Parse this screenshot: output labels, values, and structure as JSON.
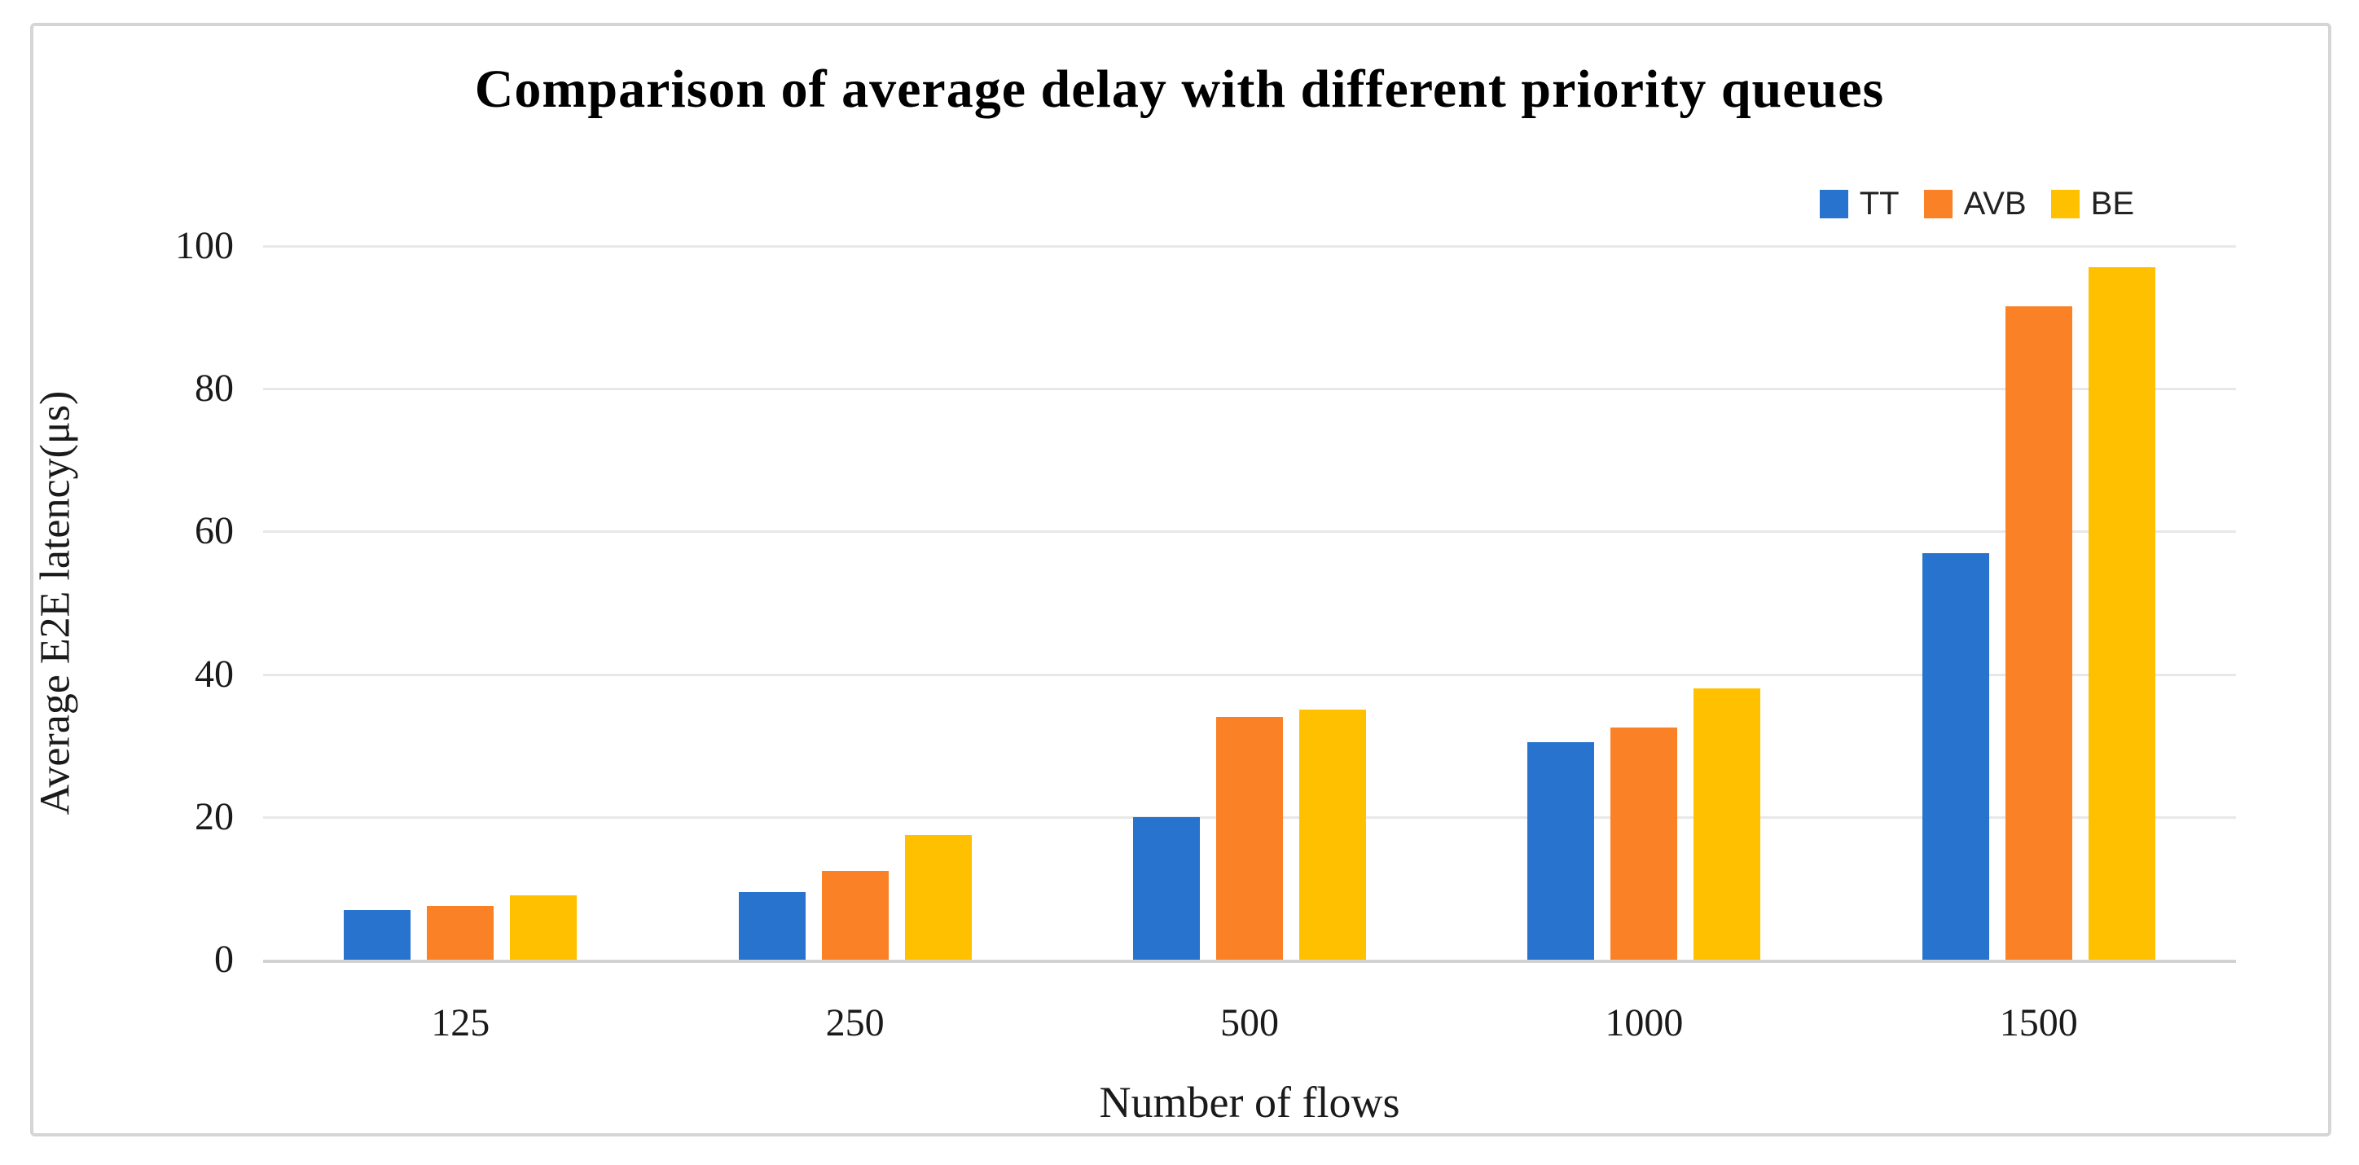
{
  "chart_data": {
    "type": "bar",
    "title": "Comparison of average delay with different priority queues",
    "xlabel": "Number of flows",
    "ylabel": "Average E2E latency(μs)",
    "categories": [
      "125",
      "250",
      "500",
      "1000",
      "1500"
    ],
    "series": [
      {
        "name": "TT",
        "color": "#2873CE",
        "values": [
          7,
          9.5,
          20,
          30.5,
          57
        ]
      },
      {
        "name": "AVB",
        "color": "#FA8125",
        "values": [
          7.5,
          12.5,
          34,
          32.5,
          91.5
        ]
      },
      {
        "name": "BE",
        "color": "#FFC000",
        "values": [
          9,
          17.5,
          35,
          38,
          97
        ]
      }
    ],
    "ylim": [
      0,
      100
    ],
    "yticks": [
      0,
      20,
      40,
      60,
      80,
      100
    ],
    "grid": true,
    "legend_position": "top-right",
    "colors": {
      "gridline": "#e8e8e8",
      "axis_line": "#d2d2d2",
      "canvas_border": "#d5d5d5",
      "text": "#1a1a1a"
    }
  }
}
